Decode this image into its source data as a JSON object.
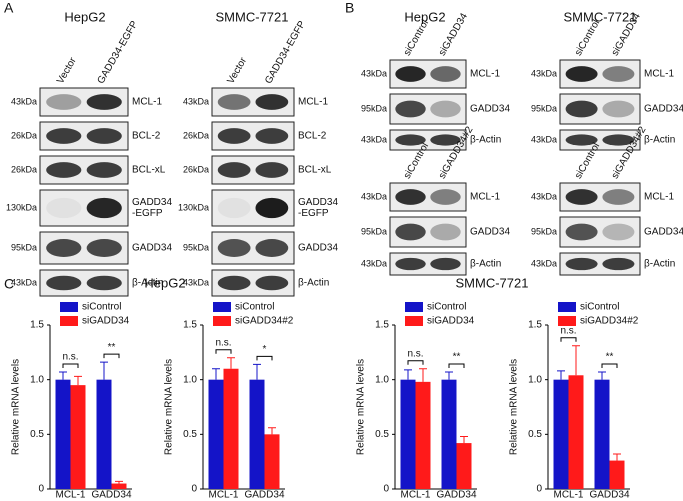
{
  "panel_labels": [
    "A",
    "B",
    "C"
  ],
  "blots": [
    {
      "title": "HepG2",
      "lanes": [
        "Vector",
        "GADD34-EGFP"
      ],
      "rows": [
        {
          "mw": "43kDa",
          "label": [
            "MCL-1"
          ]
        },
        {
          "mw": "26kDa",
          "label": [
            "BCL-2"
          ]
        },
        {
          "mw": "26kDa",
          "label": [
            "BCL-xL"
          ]
        },
        {
          "mw": "130kDa",
          "label": [
            "GADD34",
            "-EGFP"
          ]
        },
        {
          "mw": "95kDa",
          "label": [
            "GADD34"
          ]
        },
        {
          "mw": "43kDa",
          "label": [
            "β-Actin"
          ]
        }
      ]
    },
    {
      "title": "SMMC-7721",
      "lanes": [
        "Vector",
        "GADD34-EGFP"
      ],
      "rows": [
        {
          "mw": "43kDa",
          "label": [
            "MCL-1"
          ]
        },
        {
          "mw": "26kDa",
          "label": [
            "BCL-2"
          ]
        },
        {
          "mw": "26kDa",
          "label": [
            "BCL-xL"
          ]
        },
        {
          "mw": "130kDa",
          "label": [
            "GADD34",
            "-EGFP"
          ]
        },
        {
          "mw": "95kDa",
          "label": [
            "GADD34"
          ]
        },
        {
          "mw": "43kDa",
          "label": [
            "β-Actin"
          ]
        }
      ]
    },
    {
      "title": "HepG2",
      "lanes": [
        "siControl",
        "siGADD34"
      ],
      "rows": [
        {
          "mw": "43kDa",
          "label": [
            "MCL-1"
          ]
        },
        {
          "mw": "95kDa",
          "label": [
            "GADD34"
          ]
        },
        {
          "mw": "43kDa",
          "label": [
            "β-Actin"
          ]
        }
      ]
    },
    {
      "title": "SMMC-7721",
      "lanes": [
        "siControl",
        "siGADD34"
      ],
      "rows": [
        {
          "mw": "43kDa",
          "label": [
            "MCL-1"
          ]
        },
        {
          "mw": "95kDa",
          "label": [
            "GADD34"
          ]
        },
        {
          "mw": "43kDa",
          "label": [
            "β-Actin"
          ]
        }
      ]
    },
    {
      "lanes": [
        "siControl",
        "siGADD34#2"
      ],
      "rows": [
        {
          "mw": "43kDa",
          "label": [
            "MCL-1"
          ]
        },
        {
          "mw": "95kDa",
          "label": [
            "GADD34"
          ]
        },
        {
          "mw": "43kDa",
          "label": [
            "β-Actin"
          ]
        }
      ]
    },
    {
      "lanes": [
        "siControl",
        "siGADD34#2"
      ],
      "rows": [
        {
          "mw": "43kDa",
          "label": [
            "MCL-1"
          ]
        },
        {
          "mw": "95kDa",
          "label": [
            "GADD34"
          ]
        },
        {
          "mw": "43kDa",
          "label": [
            "β-Actin"
          ]
        }
      ]
    }
  ],
  "section_titles": [
    "HepG2",
    "SMMC-7721"
  ],
  "chart_data": [
    {
      "type": "bar",
      "ylabel": "Relative mRNA levels",
      "categories": [
        "MCL-1",
        "GADD34"
      ],
      "ylim": [
        0,
        1.5
      ],
      "yticks": [
        0,
        0.5,
        {
          "value": 1,
          "label": "1.0"
        },
        1.5
      ],
      "annotations": [
        "n.s.",
        "**"
      ],
      "series": [
        {
          "name": "siControl",
          "color": "#1414c8",
          "values": [
            1.0,
            1.0
          ],
          "errors": [
            0.07,
            0.16
          ]
        },
        {
          "name": "siGADD34",
          "color": "#ff1a1a",
          "values": [
            0.95,
            0.05
          ],
          "errors": [
            0.08,
            0.02
          ]
        }
      ]
    },
    {
      "type": "bar",
      "ylabel": "Relative mRNA levels",
      "categories": [
        "MCL-1",
        "GADD34"
      ],
      "ylim": [
        0,
        1.5
      ],
      "yticks": [
        0,
        0.5,
        {
          "value": 1,
          "label": "1.0"
        },
        1.5
      ],
      "annotations": [
        "n.s.",
        "*"
      ],
      "series": [
        {
          "name": "siControl",
          "color": "#1414c8",
          "values": [
            1.0,
            1.0
          ],
          "errors": [
            0.1,
            0.14
          ]
        },
        {
          "name": "siGADD34#2",
          "color": "#ff1a1a",
          "values": [
            1.1,
            0.5
          ],
          "errors": [
            0.1,
            0.06
          ]
        }
      ]
    },
    {
      "type": "bar",
      "ylabel": "Relative mRNA levels",
      "categories": [
        "MCL-1",
        "GADD34"
      ],
      "ylim": [
        0,
        1.5
      ],
      "yticks": [
        0,
        0.5,
        {
          "value": 1,
          "label": "1.0"
        },
        1.5
      ],
      "annotations": [
        "n.s.",
        "**"
      ],
      "series": [
        {
          "name": "siControl",
          "color": "#1414c8",
          "values": [
            1.0,
            1.0
          ],
          "errors": [
            0.09,
            0.07
          ]
        },
        {
          "name": "siGADD34",
          "color": "#ff1a1a",
          "values": [
            0.98,
            0.42
          ],
          "errors": [
            0.12,
            0.06
          ]
        }
      ]
    },
    {
      "type": "bar",
      "ylabel": "Relative mRNA levels",
      "categories": [
        "MCL-1",
        "GADD34"
      ],
      "ylim": [
        0,
        1.5
      ],
      "yticks": [
        0,
        0.5,
        {
          "value": 1,
          "label": "1.0"
        },
        1.5
      ],
      "annotations": [
        "n.s.",
        "**"
      ],
      "series": [
        {
          "name": "siControl",
          "color": "#1414c8",
          "values": [
            1.0,
            1.0
          ],
          "errors": [
            0.08,
            0.07
          ]
        },
        {
          "name": "siGADD34#2",
          "color": "#ff1a1a",
          "values": [
            1.04,
            0.26
          ],
          "errors": [
            0.27,
            0.06
          ]
        }
      ]
    }
  ]
}
